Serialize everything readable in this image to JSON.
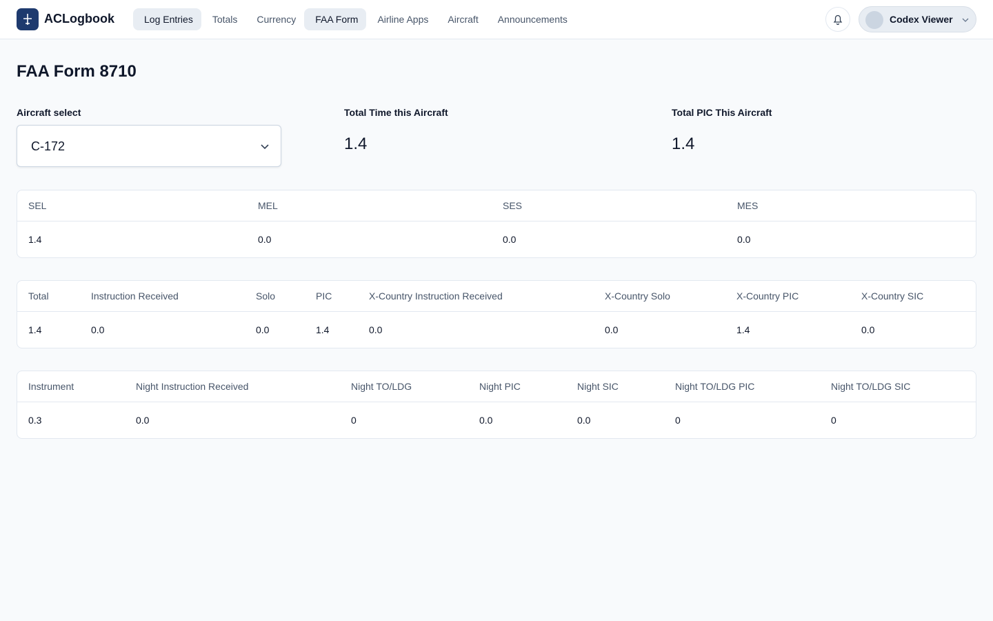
{
  "header": {
    "brand": "ACLogbook",
    "nav": [
      "Log Entries",
      "Totals",
      "Currency",
      "FAA Form",
      "Airline Apps",
      "Aircraft",
      "Announcements"
    ],
    "active_nav": "FAA Form",
    "user": "Codex Viewer"
  },
  "page": {
    "title": "FAA Form 8710",
    "aircraft_select": {
      "label": "Aircraft select",
      "value": "C-172"
    },
    "stats": [
      {
        "label": "Total Time this Aircraft",
        "value": "1.4"
      },
      {
        "label": "Total PIC This Aircraft",
        "value": "1.4"
      }
    ]
  },
  "tables": [
    {
      "columns": [
        "SEL",
        "MEL",
        "SES",
        "MES"
      ],
      "row": [
        "1.4",
        "0.0",
        "0.0",
        "0.0"
      ]
    },
    {
      "columns": [
        "Total",
        "Instruction Received",
        "Solo",
        "PIC",
        "X-Country Instruction Received",
        "X-Country Solo",
        "X-Country PIC",
        "X-Country SIC"
      ],
      "row": [
        "1.4",
        "0.0",
        "0.0",
        "1.4",
        "0.0",
        "0.0",
        "1.4",
        "0.0"
      ]
    },
    {
      "columns": [
        "Instrument",
        "Night Instruction Received",
        "Night TO/LDG",
        "Night PIC",
        "Night SIC",
        "Night TO/LDG PIC",
        "Night TO/LDG SIC"
      ],
      "row": [
        "0.3",
        "0.0",
        "0",
        "0.0",
        "0.0",
        "0",
        "0"
      ]
    }
  ]
}
